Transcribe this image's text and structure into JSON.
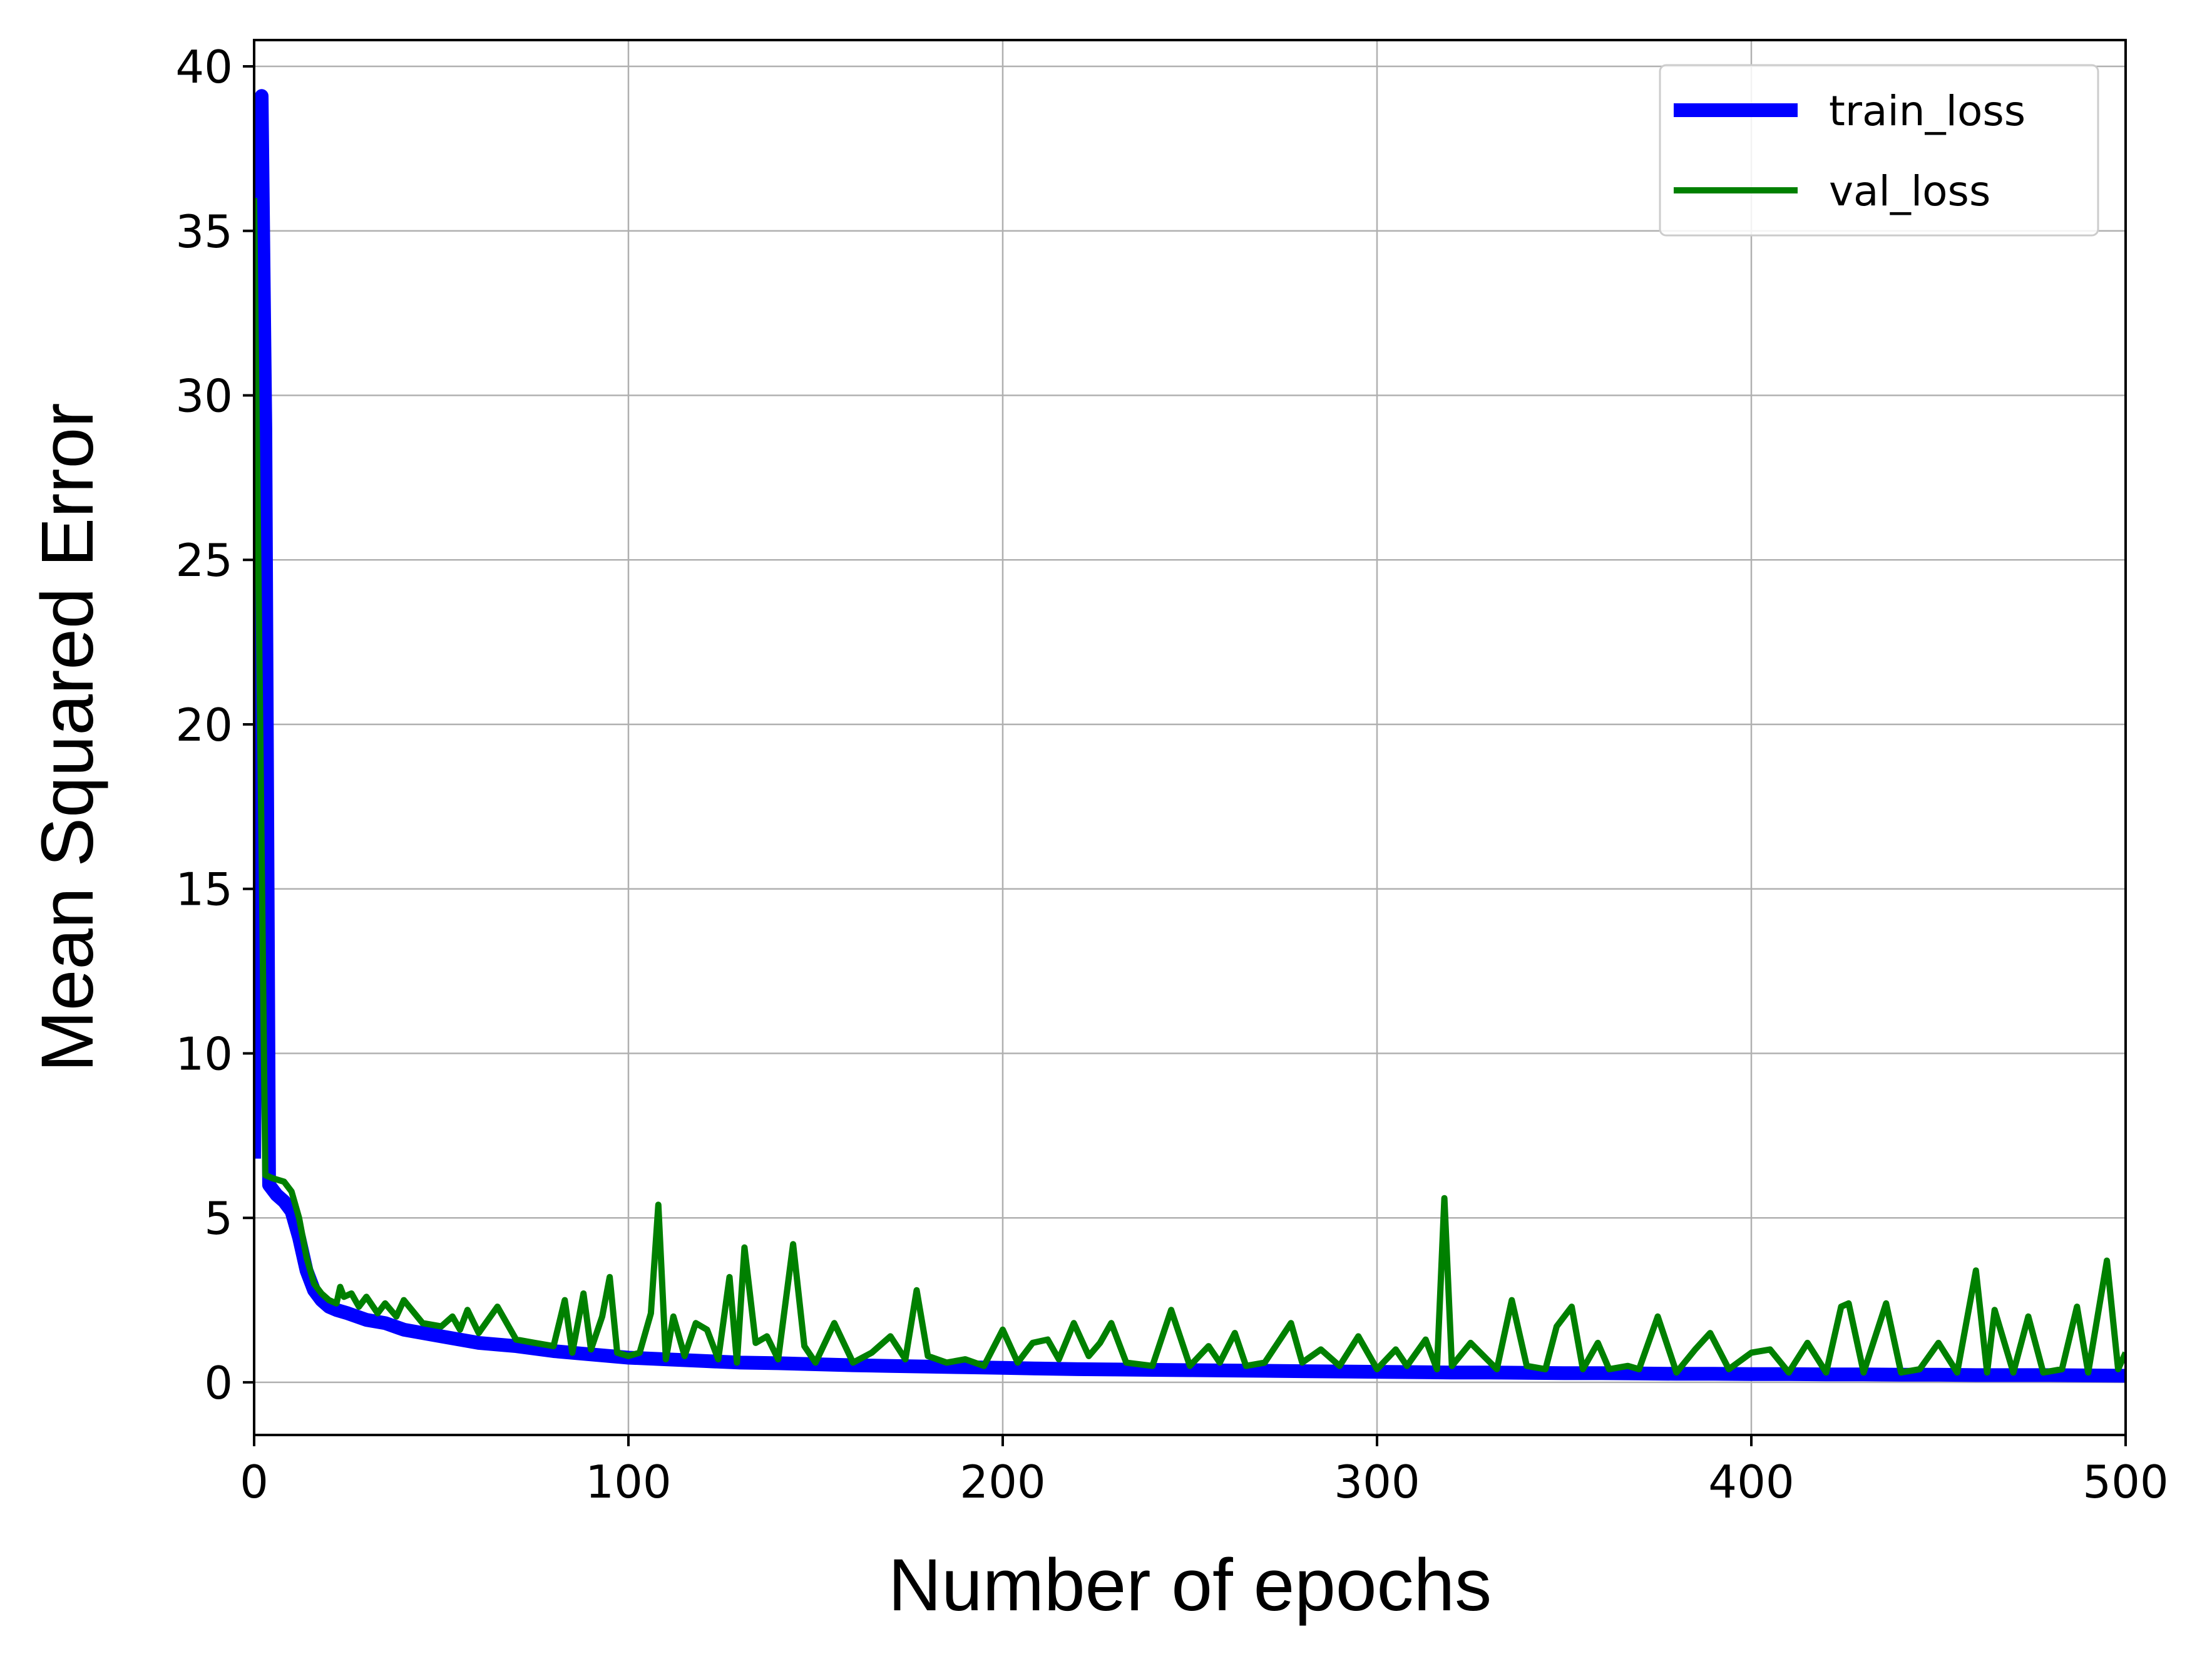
{
  "chart_data": {
    "type": "line",
    "title": "",
    "xlabel": "Number of epochs",
    "ylabel": "Mean Squared Error",
    "xlim": [
      0,
      500
    ],
    "ylim": [
      -1.6,
      40.8
    ],
    "xticks": [
      0,
      100,
      200,
      300,
      400,
      500
    ],
    "yticks": [
      0,
      5,
      10,
      15,
      20,
      25,
      30,
      35,
      40
    ],
    "grid": true,
    "legend_position": "top-right",
    "series": [
      {
        "name": "train_loss",
        "color": "#0000ff",
        "x": [
          0,
          2,
          3,
          4,
          6,
          8,
          10,
          12,
          14,
          16,
          18,
          20,
          22,
          25,
          30,
          35,
          40,
          50,
          60,
          70,
          80,
          90,
          100,
          110,
          120,
          130,
          140,
          150,
          160,
          170,
          180,
          190,
          200,
          210,
          220,
          230,
          240,
          250,
          260,
          270,
          280,
          290,
          300,
          310,
          320,
          330,
          340,
          350,
          360,
          370,
          380,
          390,
          400,
          410,
          420,
          430,
          440,
          450,
          460,
          470,
          480,
          490,
          500
        ],
        "y": [
          6.8,
          39.1,
          29.0,
          6.0,
          5.7,
          5.5,
          5.2,
          4.4,
          3.4,
          2.8,
          2.5,
          2.3,
          2.2,
          2.1,
          1.9,
          1.8,
          1.6,
          1.4,
          1.2,
          1.1,
          0.95,
          0.85,
          0.75,
          0.7,
          0.65,
          0.6,
          0.58,
          0.55,
          0.52,
          0.5,
          0.48,
          0.46,
          0.44,
          0.42,
          0.4,
          0.39,
          0.38,
          0.37,
          0.36,
          0.35,
          0.34,
          0.33,
          0.32,
          0.31,
          0.3,
          0.3,
          0.29,
          0.28,
          0.28,
          0.27,
          0.26,
          0.26,
          0.25,
          0.25,
          0.24,
          0.24,
          0.23,
          0.23,
          0.22,
          0.22,
          0.22,
          0.21,
          0.2
        ]
      },
      {
        "name": "val_loss",
        "color": "#008000",
        "x": [
          0,
          3,
          5,
          8,
          10,
          12,
          14,
          16,
          18,
          20,
          22,
          23,
          24,
          26,
          28,
          30,
          33,
          35,
          38,
          40,
          45,
          50,
          53,
          55,
          57,
          60,
          65,
          70,
          75,
          80,
          83,
          85,
          88,
          90,
          93,
          95,
          97,
          100,
          103,
          106,
          108,
          110,
          112,
          115,
          118,
          121,
          124,
          127,
          129,
          131,
          134,
          137,
          140,
          144,
          147,
          150,
          155,
          160,
          165,
          170,
          174,
          177,
          180,
          185,
          190,
          195,
          200,
          204,
          208,
          212,
          215,
          219,
          223,
          226,
          229,
          233,
          240,
          245,
          250,
          255,
          258,
          262,
          265,
          270,
          277,
          280,
          285,
          290,
          295,
          300,
          305,
          308,
          313,
          316,
          318,
          320,
          325,
          332,
          336,
          340,
          345,
          348,
          352,
          355,
          359,
          362,
          367,
          370,
          375,
          380,
          385,
          389,
          394,
          400,
          405,
          410,
          415,
          420,
          424,
          426,
          430,
          436,
          440,
          445,
          450,
          455,
          460,
          463,
          465,
          470,
          474,
          478,
          483,
          487,
          490,
          495,
          498,
          500
        ],
        "y": [
          36.0,
          6.3,
          6.2,
          6.1,
          5.8,
          5.0,
          3.8,
          3.0,
          2.7,
          2.5,
          2.4,
          2.9,
          2.6,
          2.7,
          2.3,
          2.6,
          2.1,
          2.4,
          2.0,
          2.5,
          1.8,
          1.7,
          2.0,
          1.6,
          2.2,
          1.5,
          2.3,
          1.3,
          1.2,
          1.1,
          2.5,
          0.9,
          2.7,
          1.0,
          2.0,
          3.2,
          0.9,
          0.8,
          0.9,
          2.1,
          5.4,
          0.7,
          2.0,
          0.8,
          1.8,
          1.6,
          0.7,
          3.2,
          0.6,
          4.1,
          1.2,
          1.4,
          0.7,
          4.2,
          1.1,
          0.6,
          1.8,
          0.6,
          0.9,
          1.4,
          0.7,
          2.8,
          0.8,
          0.6,
          0.7,
          0.5,
          1.6,
          0.6,
          1.2,
          1.3,
          0.7,
          1.8,
          0.8,
          1.2,
          1.8,
          0.6,
          0.5,
          2.2,
          0.5,
          1.1,
          0.6,
          1.5,
          0.5,
          0.6,
          1.8,
          0.6,
          1.0,
          0.5,
          1.4,
          0.4,
          1.0,
          0.5,
          1.3,
          0.4,
          5.6,
          0.5,
          1.2,
          0.4,
          2.5,
          0.5,
          0.4,
          1.7,
          2.3,
          0.4,
          1.2,
          0.4,
          0.5,
          0.4,
          2.0,
          0.3,
          1.0,
          1.5,
          0.4,
          0.9,
          1.0,
          0.3,
          1.2,
          0.3,
          2.3,
          2.4,
          0.3,
          2.4,
          0.3,
          0.4,
          1.2,
          0.3,
          3.4,
          0.3,
          2.2,
          0.3,
          2.0,
          0.3,
          0.4,
          2.3,
          0.3,
          3.7,
          0.4,
          0.9
        ]
      }
    ]
  }
}
